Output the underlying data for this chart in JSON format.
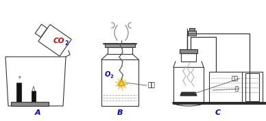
{
  "background": "#ffffff",
  "line_color": "#333333",
  "co2_color": "#cc0000",
  "co2_sub_color": "#0000cc",
  "o2_color": "#0000cc",
  "label_color": "#0000cc",
  "label_A": "A",
  "label_B": "B",
  "label_C": "C",
  "co2_text": "CO",
  "co2_sub": "2",
  "o2_text": "O",
  "o2_sub": "2",
  "tiesī_text": "铁丝",
  "honglín_text": "红磷",
  "shui_text": "水",
  "gray_color": "#888888",
  "spark_color": "#ddaa00",
  "water_line_color": "#aaaaaa"
}
